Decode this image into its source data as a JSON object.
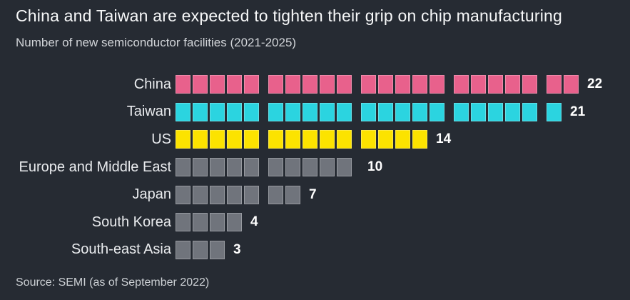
{
  "header": {
    "title": "China and Taiwan are expected to tighten their grip on chip manufacturing",
    "subtitle": "Number of new semiconductor facilities (2021-2025)"
  },
  "footer": {
    "source": "Source: SEMI (as of September 2022)"
  },
  "colors": {
    "background": "#262b33",
    "title_text": "#f7f8f9",
    "subtitle_text": "#d2d5d9",
    "label_text": "#e9ebee",
    "value_text": "#ffffff",
    "china_pink": "#e8618c",
    "taiwan_cyan": "#2bd4e0",
    "us_yellow": "#fce300",
    "other_gray": "#70747c"
  },
  "chart_data": {
    "type": "bar",
    "subtype": "horizontal unit-square (waffle) bars, squares grouped in fives",
    "title": "China and Taiwan are expected to tighten their grip on chip manufacturing",
    "subtitle": "Number of new semiconductor facilities (2021-2025)",
    "source": "Source: SEMI (as of September 2022)",
    "categories": [
      "China",
      "Taiwan",
      "US",
      "Europe and Middle East",
      "Japan",
      "South Korea",
      "South-east Asia"
    ],
    "values": [
      22,
      21,
      14,
      10,
      7,
      4,
      3
    ],
    "bar_colors": [
      "#e8618c",
      "#2bd4e0",
      "#fce300",
      "#70747c",
      "#70747c",
      "#70747c",
      "#70747c"
    ],
    "group_size": 5,
    "value_labels_shown": true,
    "orientation": "horizontal",
    "legend": "none",
    "grid": false
  }
}
